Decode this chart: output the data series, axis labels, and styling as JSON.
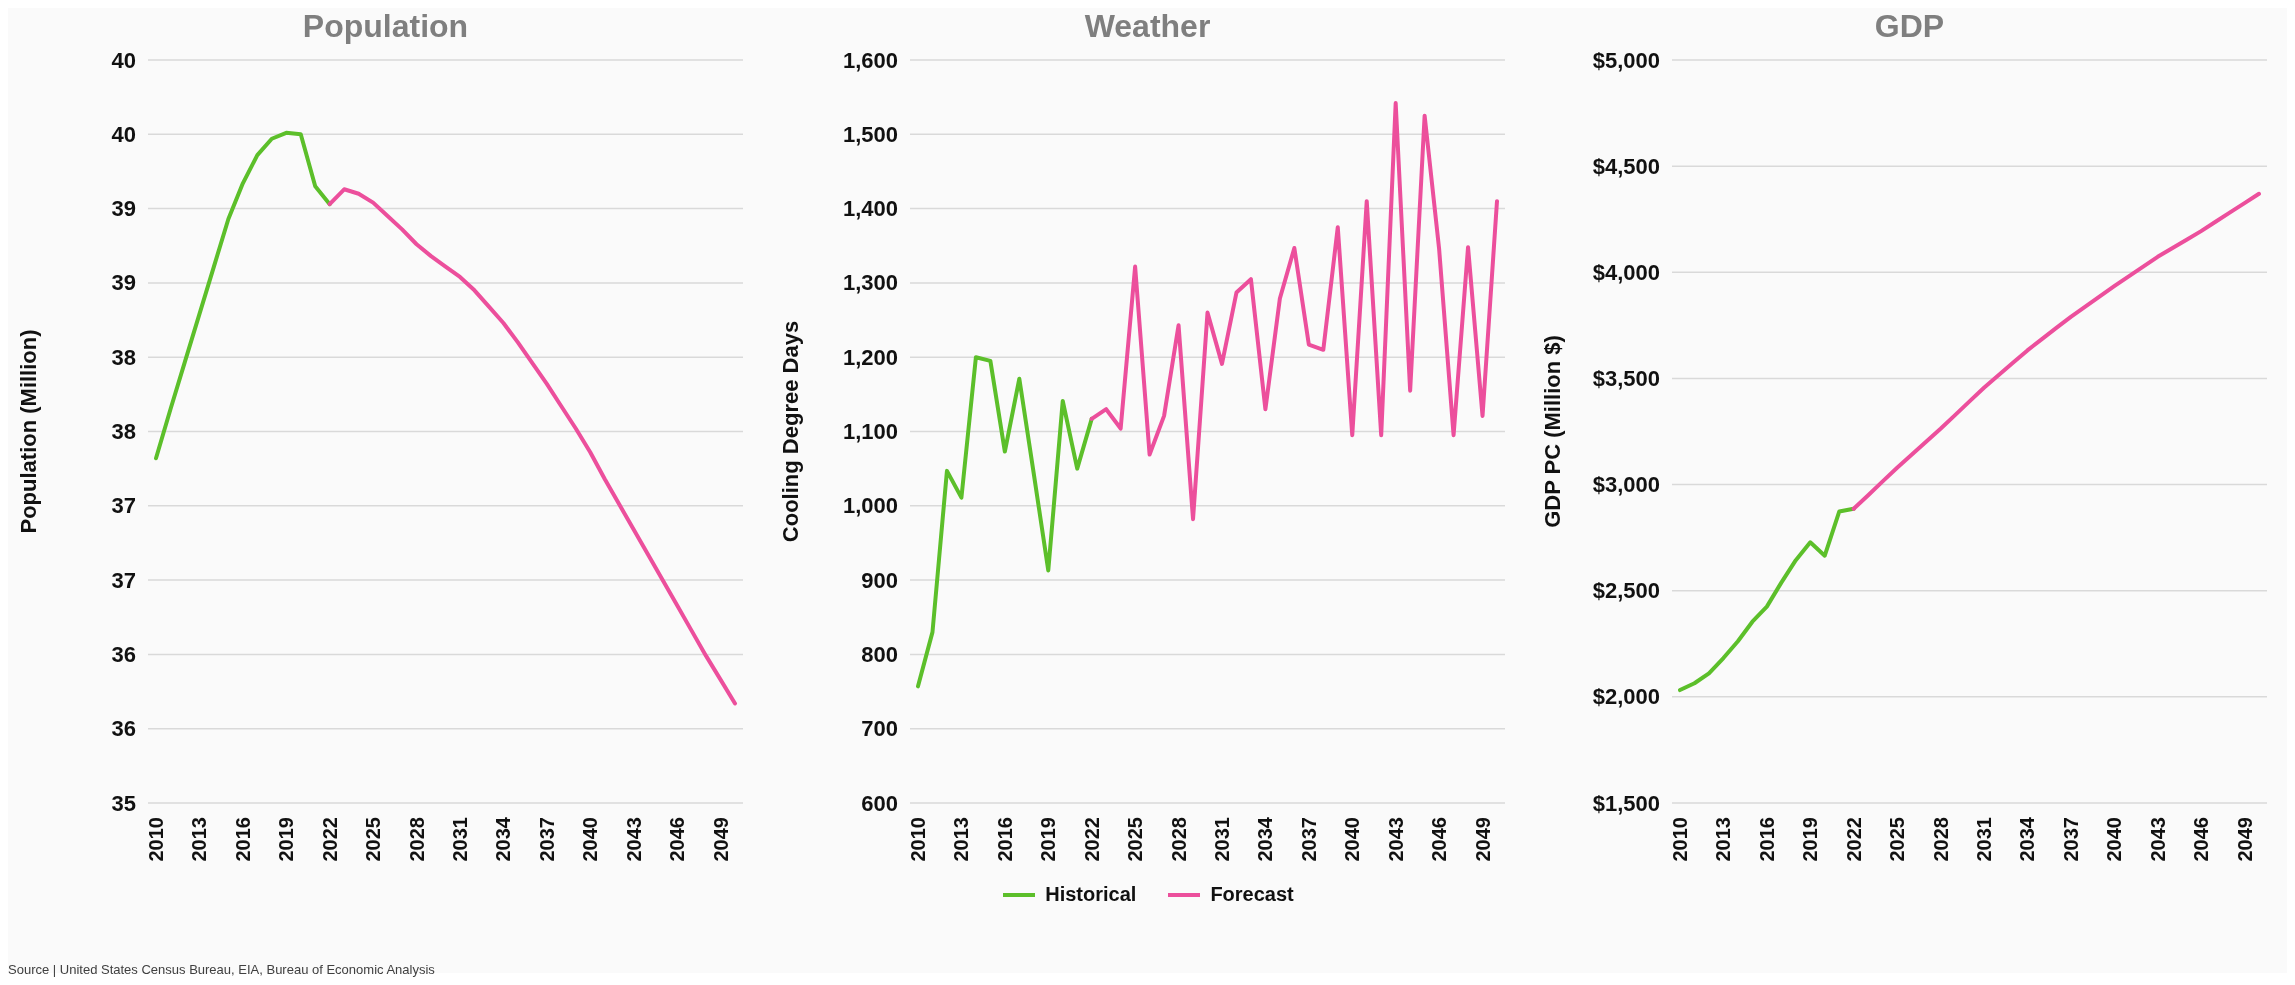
{
  "chart_data": [
    {
      "type": "line",
      "title": "Population",
      "ylabel": "Population (Million)",
      "categories": [
        "2010",
        null,
        null,
        "2013",
        null,
        null,
        "2016",
        null,
        null,
        "2019",
        null,
        null,
        "2022",
        null,
        null,
        "2025",
        null,
        null,
        "2028",
        null,
        null,
        "2031",
        null,
        null,
        "2034",
        null,
        null,
        "2037",
        null,
        null,
        "2040",
        null,
        null,
        "2043",
        null,
        null,
        "2046",
        null,
        null,
        "2049",
        null
      ],
      "series": [
        {
          "color": "#5cbf2a",
          "values": [
            37.32,
            37.65,
            37.97,
            38.29,
            38.61,
            38.93,
            39.17,
            39.36,
            39.47,
            39.51,
            39.5,
            39.15,
            39.03,
            null,
            null,
            null,
            null,
            null,
            null,
            null,
            null,
            null,
            null,
            null,
            null,
            null,
            null,
            null,
            null,
            null,
            null,
            null,
            null,
            null,
            null,
            null,
            null,
            null,
            null,
            null,
            null
          ]
        },
        {
          "color": "#ec4f9c",
          "values": [
            null,
            null,
            null,
            null,
            null,
            null,
            null,
            null,
            null,
            null,
            null,
            null,
            39.03,
            39.13,
            39.1,
            39.04,
            38.95,
            38.86,
            38.76,
            38.68,
            38.61,
            38.54,
            38.45,
            38.34,
            38.23,
            38.1,
            37.96,
            37.82,
            37.67,
            37.52,
            37.36,
            37.18,
            37.01,
            36.84,
            36.67,
            36.5,
            36.33,
            36.16,
            35.99,
            35.83,
            35.67
          ]
        }
      ],
      "ylim": [
        35,
        40
      ],
      "yticks": [
        {
          "value": 35,
          "label": "35"
        },
        {
          "value": 35.5,
          "label": "36"
        },
        {
          "value": 36,
          "label": "36"
        },
        {
          "value": 36.5,
          "label": "37"
        },
        {
          "value": 37,
          "label": "37"
        },
        {
          "value": 37.5,
          "label": "38"
        },
        {
          "value": 38,
          "label": "38"
        },
        {
          "value": 38.5,
          "label": "39"
        },
        {
          "value": 39,
          "label": "39"
        },
        {
          "value": 39.5,
          "label": "40"
        },
        {
          "value": 40,
          "label": "40"
        }
      ],
      "grid": "y",
      "marker": "none",
      "line_style": "solid",
      "annotations": [
        "Source | United States Census Bureau, EIA, Bureau of Economic Analysis"
      ]
    },
    {
      "type": "line",
      "title": "Weather",
      "ylabel": "Cooling Degree Days",
      "categories": [
        "2010",
        null,
        null,
        "2013",
        null,
        null,
        "2016",
        null,
        null,
        "2019",
        null,
        null,
        "2022",
        null,
        null,
        "2025",
        null,
        null,
        "2028",
        null,
        null,
        "2031",
        null,
        null,
        "2034",
        null,
        null,
        "2037",
        null,
        null,
        "2040",
        null,
        null,
        "2043",
        null,
        null,
        "2046",
        null,
        null,
        "2049",
        null
      ],
      "series": [
        {
          "name": "Historical",
          "color": "#5cbf2a",
          "values": [
            757,
            830,
            1047,
            1011,
            1200,
            1195,
            1073,
            1171,
            1043,
            913,
            1141,
            1050,
            1117,
            null,
            null,
            null,
            null,
            null,
            null,
            null,
            null,
            null,
            null,
            null,
            null,
            null,
            null,
            null,
            null,
            null,
            null,
            null,
            null,
            null,
            null,
            null,
            null,
            null,
            null,
            null,
            null
          ]
        },
        {
          "name": "Forecast",
          "color": "#ec4f9c",
          "values": [
            null,
            null,
            null,
            null,
            null,
            null,
            null,
            null,
            null,
            null,
            null,
            null,
            1117,
            1130,
            1104,
            1322,
            1069,
            1121,
            1243,
            982,
            1260,
            1191,
            1287,
            1305,
            1130,
            1279,
            1347,
            1217,
            1210,
            1375,
            1095,
            1410,
            1095,
            1542,
            1155,
            1525,
            1346,
            1095,
            1348,
            1121,
            1410
          ]
        }
      ],
      "ylim": [
        600,
        1600
      ],
      "yticks": [
        600,
        700,
        800,
        900,
        {
          "value": 1000,
          "label": "1,000"
        },
        {
          "value": 1100,
          "label": "1,100"
        },
        {
          "value": 1200,
          "label": "1,200"
        },
        {
          "value": 1300,
          "label": "1,300"
        },
        {
          "value": 1400,
          "label": "1,400"
        },
        {
          "value": 1500,
          "label": "1,500"
        },
        {
          "value": 1600,
          "label": "1,600"
        }
      ],
      "grid": "y",
      "marker": "none",
      "line_style": "solid",
      "legend": "bottom"
    },
    {
      "type": "line",
      "title": "GDP",
      "ylabel": "GDP PC (Million $)",
      "categories": [
        "2010",
        null,
        null,
        "2013",
        null,
        null,
        "2016",
        null,
        null,
        "2019",
        null,
        null,
        "2022",
        null,
        null,
        "2025",
        null,
        null,
        "2028",
        null,
        null,
        "2031",
        null,
        null,
        "2034",
        null,
        null,
        "2037",
        null,
        null,
        "2040",
        null,
        null,
        "2043",
        null,
        null,
        "2046",
        null,
        null,
        "2049",
        null
      ],
      "series": [
        {
          "color": "#5cbf2a",
          "values": [
            2032,
            2064,
            2111,
            2183,
            2262,
            2354,
            2425,
            2538,
            2644,
            2728,
            2665,
            2873,
            2886,
            null,
            null,
            null,
            null,
            null,
            null,
            null,
            null,
            null,
            null,
            null,
            null,
            null,
            null,
            null,
            null,
            null,
            null,
            null,
            null,
            null,
            null,
            null,
            null,
            null,
            null,
            null,
            null
          ]
        },
        {
          "color": "#ec4f9c",
          "values": [
            null,
            null,
            null,
            null,
            null,
            null,
            null,
            null,
            null,
            null,
            null,
            null,
            2886,
            2950,
            3015,
            3079,
            3140,
            3202,
            3263,
            3327,
            3392,
            3456,
            3515,
            3574,
            3632,
            3685,
            3738,
            3790,
            3838,
            3887,
            3935,
            3981,
            4027,
            4073,
            4113,
            4153,
            4194,
            4238,
            4282,
            4326,
            4370
          ]
        }
      ],
      "ylim": [
        1500,
        5000
      ],
      "yticks": [
        {
          "value": 1500,
          "label": "$1,500"
        },
        {
          "value": 2000,
          "label": "$2,000"
        },
        {
          "value": 2500,
          "label": "$2,500"
        },
        {
          "value": 3000,
          "label": "$3,000"
        },
        {
          "value": 3500,
          "label": "$3,500"
        },
        {
          "value": 4000,
          "label": "$4,000"
        },
        {
          "value": 4500,
          "label": "$4,500"
        },
        {
          "value": 5000,
          "label": "$5,000"
        }
      ],
      "grid": "y",
      "marker": "none",
      "line_style": "solid"
    }
  ]
}
